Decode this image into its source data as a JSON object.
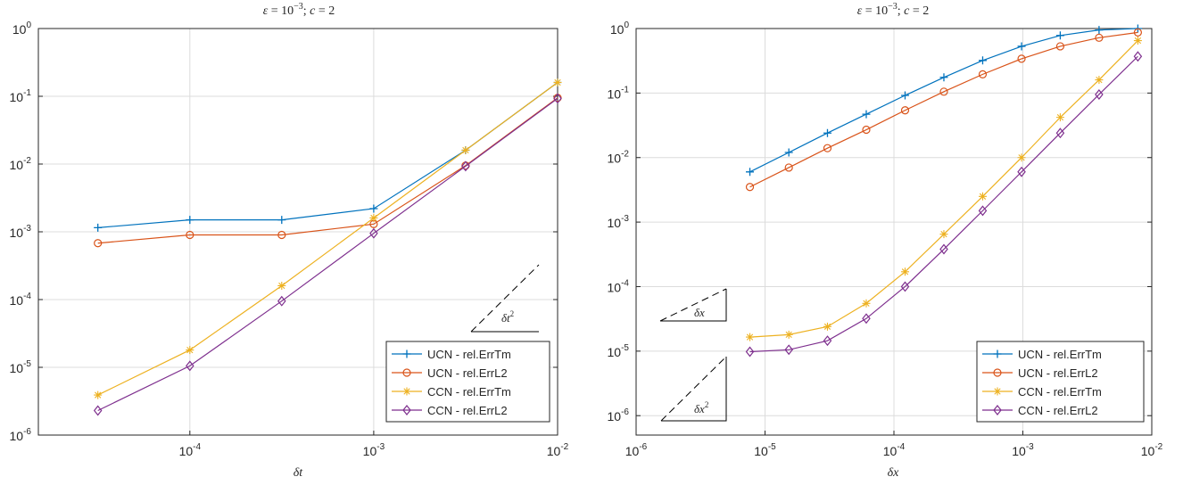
{
  "chart_data": [
    {
      "type": "line",
      "title": "ε = 10⁻³; c = 2",
      "title_parts": {
        "eps": "ε",
        "eq1": " = 10",
        "exp": "−3",
        "sep": "; ",
        "c": "c",
        "eq2": " = 2"
      },
      "xlabel": "δt",
      "xscale": "log",
      "yscale": "log",
      "xlim": [
        1.5e-05,
        0.01
      ],
      "ylim": [
        1e-06,
        1
      ],
      "grid": true,
      "x_ticks": [
        {
          "value": 0.0001,
          "base": "10",
          "exp": "-4"
        },
        {
          "value": 0.001,
          "base": "10",
          "exp": "-3"
        },
        {
          "value": 0.01,
          "base": "10",
          "exp": "-2"
        }
      ],
      "y_ticks": [
        {
          "value": 1e-06,
          "base": "10",
          "exp": "-6"
        },
        {
          "value": 1e-05,
          "base": "10",
          "exp": "-5"
        },
        {
          "value": 0.0001,
          "base": "10",
          "exp": "-4"
        },
        {
          "value": 0.001,
          "base": "10",
          "exp": "-3"
        },
        {
          "value": 0.01,
          "base": "10",
          "exp": "-2"
        },
        {
          "value": 0.1,
          "base": "10",
          "exp": "-1"
        },
        {
          "value": 1,
          "base": "10",
          "exp": "0"
        }
      ],
      "x": [
        3.16e-05,
        0.0001,
        0.000316,
        0.001,
        0.00316,
        0.01
      ],
      "series": [
        {
          "name": "UCN - rel.ErrTm",
          "color": "#0072BD",
          "marker": "plus",
          "values": [
            0.00115,
            0.0015,
            0.0015,
            0.0022,
            0.016,
            0.16
          ]
        },
        {
          "name": "UCN - rel.ErrL2",
          "color": "#D95319",
          "marker": "circle",
          "values": [
            0.00068,
            0.0009,
            0.0009,
            0.0013,
            0.0095,
            0.095
          ]
        },
        {
          "name": "CCN - rel.ErrTm",
          "color": "#EDB120",
          "marker": "asterisk",
          "values": [
            3.9e-06,
            1.8e-05,
            0.00016,
            0.0016,
            0.016,
            0.16
          ]
        },
        {
          "name": "CCN - rel.ErrL2",
          "color": "#7E2F8E",
          "marker": "diamond",
          "values": [
            2.3e-06,
            1.05e-05,
            9.5e-05,
            0.00095,
            0.0093,
            0.093
          ]
        }
      ],
      "slope_labels": [
        {
          "base": "δt",
          "exp": "2"
        }
      ],
      "legend": "bottom-right"
    },
    {
      "type": "line",
      "title": "ε = 10⁻³; c = 2",
      "title_parts": {
        "eps": "ε",
        "eq1": " = 10",
        "exp": "−3",
        "sep": "; ",
        "c": "c",
        "eq2": " = 2"
      },
      "xlabel": "δx",
      "xscale": "log",
      "yscale": "log",
      "xlim": [
        1e-06,
        0.01
      ],
      "ylim": [
        5e-07,
        1
      ],
      "grid": true,
      "x_ticks": [
        {
          "value": 1e-06,
          "base": "10",
          "exp": "-6"
        },
        {
          "value": 1e-05,
          "base": "10",
          "exp": "-5"
        },
        {
          "value": 0.0001,
          "base": "10",
          "exp": "-4"
        },
        {
          "value": 0.001,
          "base": "10",
          "exp": "-3"
        },
        {
          "value": 0.01,
          "base": "10",
          "exp": "-2"
        }
      ],
      "y_ticks": [
        {
          "value": 1e-06,
          "base": "10",
          "exp": "-6"
        },
        {
          "value": 1e-05,
          "base": "10",
          "exp": "-5"
        },
        {
          "value": 0.0001,
          "base": "10",
          "exp": "-4"
        },
        {
          "value": 0.001,
          "base": "10",
          "exp": "-3"
        },
        {
          "value": 0.01,
          "base": "10",
          "exp": "-2"
        },
        {
          "value": 0.1,
          "base": "10",
          "exp": "-1"
        },
        {
          "value": 1,
          "base": "10",
          "exp": "0"
        }
      ],
      "x": [
        7.63e-06,
        1.53e-05,
        3.05e-05,
        6.1e-05,
        0.000122,
        0.000244,
        0.000488,
        0.000977,
        0.00195,
        0.0039,
        0.0078
      ],
      "series": [
        {
          "name": "UCN - rel.ErrTm",
          "color": "#0072BD",
          "marker": "plus",
          "values": [
            0.006,
            0.012,
            0.024,
            0.047,
            0.092,
            0.175,
            0.32,
            0.53,
            0.78,
            0.95,
            1.0
          ]
        },
        {
          "name": "UCN - rel.ErrL2",
          "color": "#D95319",
          "marker": "circle",
          "values": [
            0.0035,
            0.007,
            0.014,
            0.027,
            0.054,
            0.105,
            0.195,
            0.34,
            0.53,
            0.72,
            0.87
          ]
        },
        {
          "name": "CCN - rel.ErrTm",
          "color": "#EDB120",
          "marker": "asterisk",
          "values": [
            1.65e-05,
            1.8e-05,
            2.4e-05,
            5.5e-05,
            0.00017,
            0.00065,
            0.0025,
            0.01,
            0.042,
            0.16,
            0.65
          ]
        },
        {
          "name": "CCN - rel.ErrL2",
          "color": "#7E2F8E",
          "marker": "diamond",
          "values": [
            9.8e-06,
            1.05e-05,
            1.45e-05,
            3.2e-05,
            0.0001,
            0.00038,
            0.0015,
            0.006,
            0.024,
            0.095,
            0.37
          ]
        }
      ],
      "slope_labels": [
        {
          "base": "δx",
          "exp": ""
        },
        {
          "base": "δx",
          "exp": "2"
        }
      ],
      "legend": "bottom-right"
    }
  ]
}
